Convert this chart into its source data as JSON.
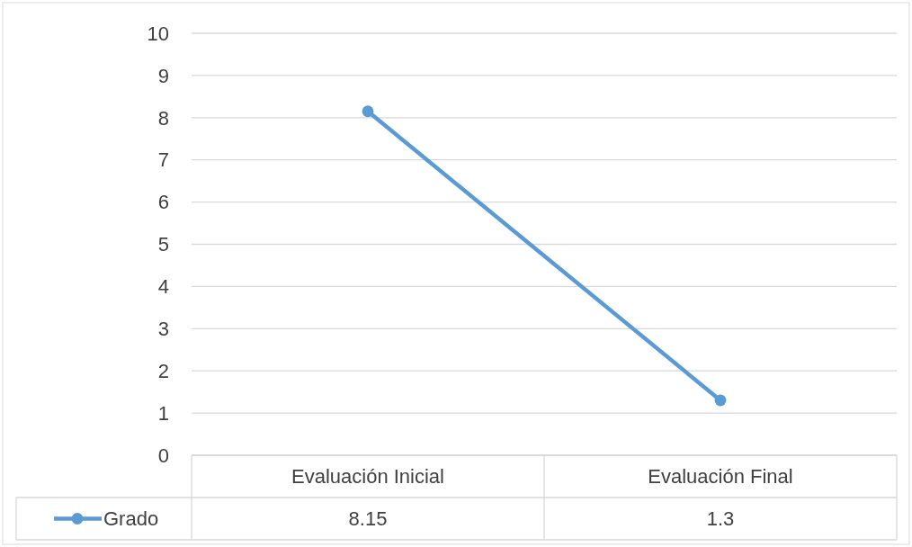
{
  "chart_data": {
    "type": "line",
    "categories": [
      "Evaluación Inicial",
      "Evaluación Final"
    ],
    "series": [
      {
        "name": "Grado",
        "color": "#5b9bd5",
        "values": [
          8.15,
          1.3
        ]
      }
    ],
    "ylim": [
      0,
      10
    ],
    "yticks": [
      0,
      1,
      2,
      3,
      4,
      5,
      6,
      7,
      8,
      9,
      10
    ],
    "grid": "y",
    "marker": "circle",
    "line_style": "solid",
    "legend": "bottom left",
    "data_labels": true
  }
}
